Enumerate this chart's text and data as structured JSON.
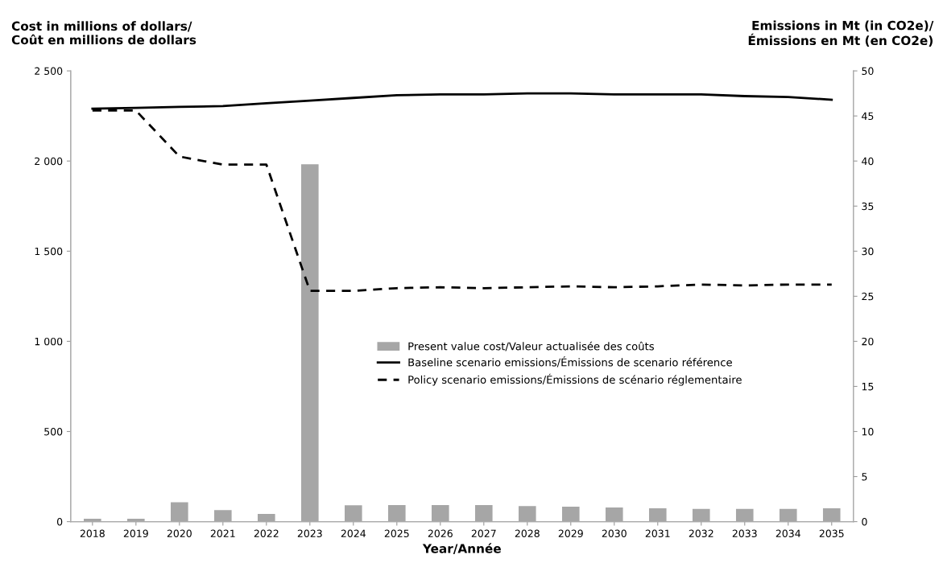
{
  "chart_data": {
    "type": "bar",
    "categories": [
      "2018",
      "2019",
      "2020",
      "2021",
      "2022",
      "2023",
      "2024",
      "2025",
      "2026",
      "2027",
      "2028",
      "2029",
      "2030",
      "2031",
      "2032",
      "2033",
      "2034",
      "2035"
    ],
    "series": [
      {
        "name": "Present value cost/Valeur actualisée des coûts",
        "color": "#a6a6a6",
        "values": [
          16,
          16,
          108,
          64,
          43,
          1982,
          91,
          92,
          92,
          92,
          86,
          83,
          78,
          74,
          71,
          71,
          71,
          74
        ]
      },
      {
        "name": "Baseline scenario emissions/Émissions de scenario référence",
        "type": "line",
        "axis": "y2",
        "color": "#000000",
        "line_style": "solid",
        "values": [
          45.8,
          45.9,
          46.0,
          46.1,
          46.4,
          46.7,
          47.0,
          47.3,
          47.4,
          47.4,
          47.5,
          47.5,
          47.4,
          47.4,
          47.4,
          47.2,
          47.1,
          46.8
        ]
      },
      {
        "name": "Policy scenario emissions/Émissions de scénario réglementaire",
        "type": "line",
        "axis": "y2",
        "color": "#000000",
        "line_style": "dashed",
        "values": [
          45.6,
          45.6,
          40.5,
          39.6,
          39.6,
          25.6,
          25.6,
          25.9,
          26.0,
          25.9,
          26.0,
          26.1,
          26.0,
          26.1,
          26.3,
          26.2,
          26.3,
          26.3
        ]
      }
    ],
    "xlabel": "Year/Année",
    "ylabel": "Cost in millions of dollars/\nCoût en millions de dollars",
    "y2label": "Emissions in Mt (in CO2e)/\nÉmissions en Mt (en CO2e)",
    "ylim": [
      0,
      2500
    ],
    "yticks": [
      {
        "value": 0,
        "label": "0"
      },
      {
        "value": 500,
        "label": "500"
      },
      {
        "value": 1000,
        "label": "1 000"
      },
      {
        "value": 1500,
        "label": "1 500"
      },
      {
        "value": 2000,
        "label": "2 000"
      },
      {
        "value": 2500,
        "label": "2 500"
      }
    ],
    "y2lim": [
      0,
      50
    ],
    "y2ticks": [
      0,
      5,
      10,
      15,
      20,
      25,
      30,
      35,
      40,
      45,
      50
    ],
    "grid": false,
    "legend": "right"
  }
}
